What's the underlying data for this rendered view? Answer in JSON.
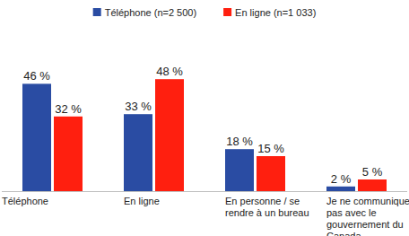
{
  "chart_data": {
    "type": "bar",
    "categories": [
      "Téléphone",
      "En ligne",
      "En personne / se rendre à un bureau",
      "Je ne communique pas avec le gouvernement du Canada"
    ],
    "series": [
      {
        "name": "Téléphone (n=2 500)",
        "color": "#2a4ca3",
        "values": [
          46,
          33,
          18,
          2
        ],
        "value_labels": [
          "46 %",
          "33 %",
          "18 %",
          "2 %"
        ]
      },
      {
        "name": "En ligne (n=1 033)",
        "color": "#ff1f0f",
        "values": [
          32,
          48,
          15,
          5
        ],
        "value_labels": [
          "32 %",
          "48 %",
          "15 %",
          "5 %"
        ]
      }
    ],
    "ylim": [
      0,
      50
    ],
    "data_labels": true,
    "tick_labels": "x",
    "legend": "top"
  }
}
